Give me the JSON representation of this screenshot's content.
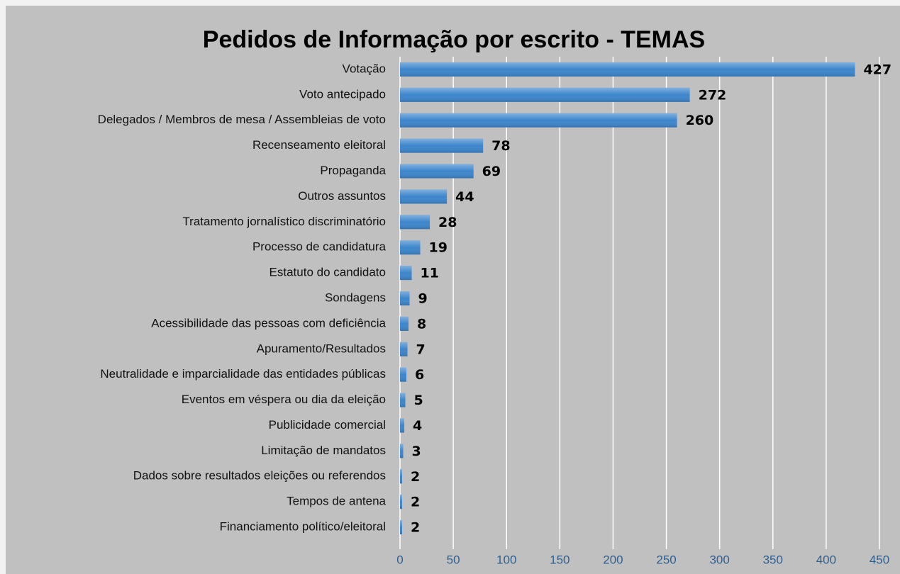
{
  "chart_data": {
    "type": "bar",
    "orientation": "horizontal",
    "title": "Pedidos de Informação por escrito - TEMAS",
    "categories": [
      "Votação",
      "Voto antecipado",
      "Delegados / Membros de mesa / Assembleias de voto ",
      "Recenseamento eleitoral",
      "Propaganda",
      "Outros assuntos ",
      "Tratamento jornalístico discriminatório",
      "Processo de candidatura",
      "Estatuto do candidato",
      "Sondagens",
      "Acessibilidade das pessoas com deficiência",
      "Apuramento/Resultados",
      "Neutralidade e imparcialidade das entidades públicas",
      "Eventos em véspera ou dia da eleição",
      "Publicidade comercial",
      "Limitação de mandatos",
      "Dados sobre resultados eleições ou referendos",
      "Tempos de antena",
      "Financiamento político/eleitoral"
    ],
    "values": [
      427,
      272,
      260,
      78,
      69,
      44,
      28,
      19,
      11,
      9,
      8,
      7,
      6,
      5,
      4,
      3,
      2,
      2,
      2
    ],
    "color": "#3d86cc",
    "xlim": [
      0,
      450
    ],
    "xticks": [
      0,
      50,
      100,
      150,
      200,
      250,
      300,
      350,
      400,
      450
    ],
    "grid": true
  }
}
